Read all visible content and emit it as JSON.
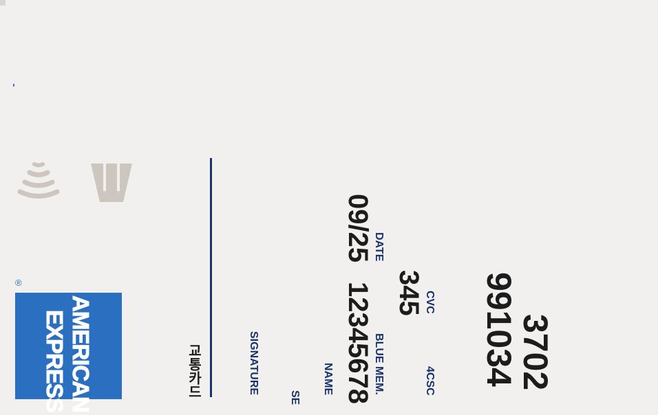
{
  "card": {
    "number_line1": "3702",
    "number_line2": "991034",
    "cvc_value": "345",
    "cvc_label": "CVC",
    "csc_label": "4CSC",
    "expiry_value": "09/25",
    "expiry_label": "DATE",
    "member_number": "12345678",
    "member_label": "BLUE MEM.",
    "name_label": "NAME",
    "signature_label": "SIGNATURE",
    "se_label": "SE",
    "transit_label": "교통카드"
  },
  "brand": {
    "word1": "AMERICAN",
    "word2": "EXPRESS",
    "registered_mark": "®",
    "box_color": "#2a6fc0"
  },
  "icons": {
    "contactless": "contactless-icon",
    "chip": "chip-icon"
  }
}
